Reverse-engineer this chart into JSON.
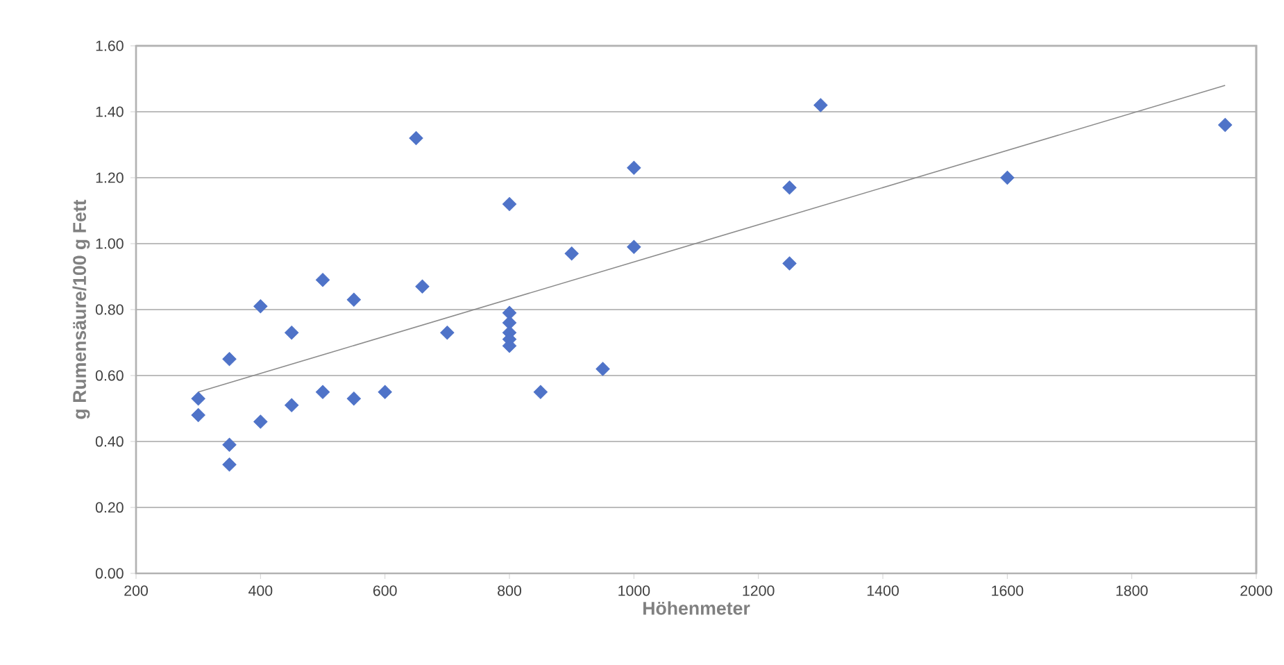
{
  "chart_data": {
    "type": "scatter",
    "xlabel": "Höhenmeter",
    "ylabel": "g Rumensäure/100 g Fett",
    "series": [
      {
        "color": "#4f73c8",
        "marker": "diamond",
        "x": [
          300,
          300,
          350,
          350,
          350,
          400,
          400,
          450,
          450,
          500,
          500,
          550,
          550,
          600,
          650,
          660,
          700,
          800,
          800,
          800,
          800,
          800,
          800,
          850,
          900,
          950,
          1000,
          1000,
          1250,
          1250,
          1300,
          1600,
          1950
        ],
        "values": [
          0.53,
          0.48,
          0.65,
          0.39,
          0.33,
          0.81,
          0.46,
          0.73,
          0.51,
          0.89,
          0.55,
          0.83,
          0.53,
          0.55,
          1.32,
          0.87,
          0.73,
          1.12,
          0.79,
          0.76,
          0.73,
          0.71,
          0.69,
          0.55,
          0.97,
          0.62,
          1.23,
          0.99,
          1.17,
          0.94,
          1.42,
          1.2,
          1.36
        ]
      },
      {
        "type": "line",
        "color": "#8c8c8c",
        "marker": "none",
        "x": [
          300,
          1950
        ],
        "values": [
          0.55,
          1.48
        ]
      }
    ],
    "xlim": [
      200,
      2000
    ],
    "xticks": [
      200,
      400,
      600,
      800,
      1000,
      1200,
      1400,
      1600,
      1800,
      2000
    ],
    "ylim": [
      0,
      1.6
    ],
    "yticks": [
      {
        "value": 0,
        "label": "0.00"
      },
      {
        "value": 0.2,
        "label": "0.20"
      },
      {
        "value": 0.4,
        "label": "0.40"
      },
      {
        "value": 0.6,
        "label": "0.60"
      },
      {
        "value": 0.8,
        "label": "0.80"
      },
      {
        "value": 1.0,
        "label": "1.00"
      },
      {
        "value": 1.2,
        "label": "1.20"
      },
      {
        "value": 1.4,
        "label": "1.40"
      },
      {
        "value": 1.6,
        "label": "1.60"
      }
    ],
    "grid": "y"
  }
}
